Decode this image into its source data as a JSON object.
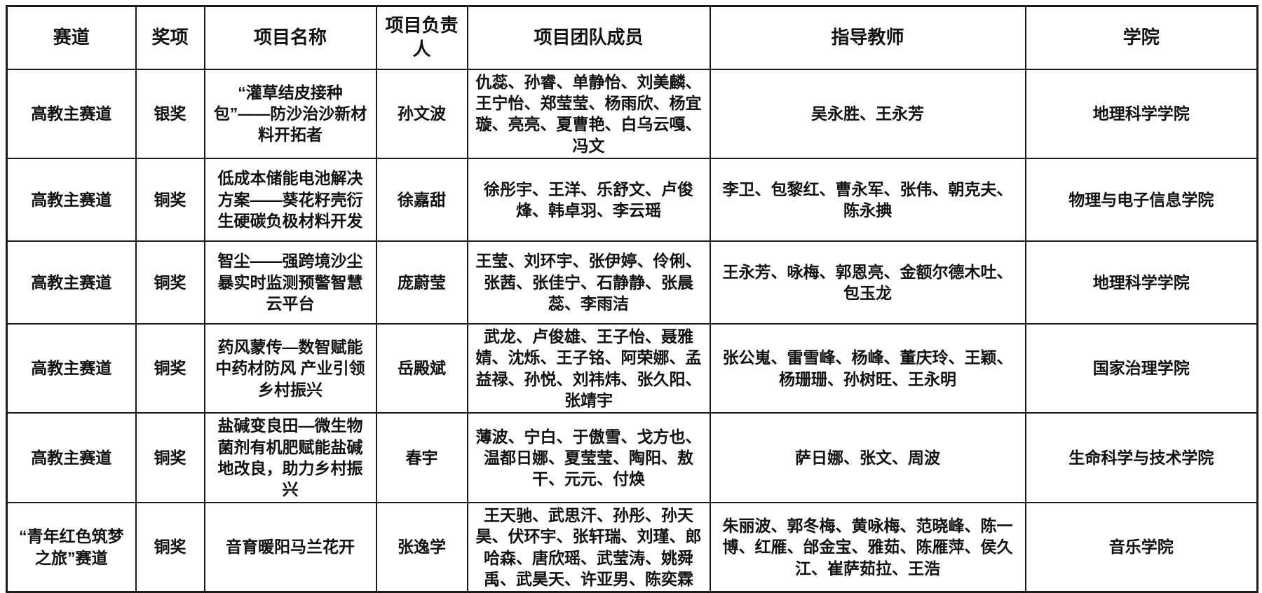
{
  "table": {
    "headers": [
      "赛道",
      "奖项",
      "项目名称",
      "项目负责人",
      "项目团队成员",
      "指导教师",
      "学院"
    ],
    "rows": [
      {
        "track": "高教主赛道",
        "award": "银奖",
        "project": "“灌草结皮接种包”——防沙治沙新材料开拓者",
        "leader": "孙文波",
        "members": "仇蕊、孙睿、单静怡、刘美麟、王宁怡、郑莹莹、杨雨欣、杨宜璇、亮亮、夏曹艳、白乌云嘎、冯文",
        "teachers": "吴永胜、王永芳",
        "college": "地理科学学院"
      },
      {
        "track": "高教主赛道",
        "award": "铜奖",
        "project": "低成本储能电池解决方案——葵花籽壳衍生硬碳负极材料开发",
        "leader": "徐嘉甜",
        "members": "徐彤宇、王洋、乐舒文、卢俊烽、韩卓羽、李云瑶",
        "teachers": "李卫、包黎红、曹永军、张伟、朝克夫、陈永捵",
        "college": "物理与电子信息学院"
      },
      {
        "track": "高教主赛道",
        "award": "铜奖",
        "project": "智尘——强跨境沙尘暴实时监测预警智慧云平台",
        "leader": "庞蔚莹",
        "members": "王莹、刘环宇、张伊婷、伶俐、张茜、张佳宁、石静静、张晨蕊、李雨洁",
        "teachers": "王永芳、咏梅、郭恩亮、金额尔德木吐、包玉龙",
        "college": "地理科学学院"
      },
      {
        "track": "高教主赛道",
        "award": "铜奖",
        "project": "药风蒙传—数智赋能中药材防风 产业引领乡村振兴",
        "leader": "岳殿斌",
        "members": "武龙、卢俊雄、王子怡、聂雅婧、沈烁、王子铭、阿荣娜、孟益禄、孙悦、刘祎炜、张久阳、张靖宇",
        "teachers": "张公嵬、雷雪峰、杨峰、董庆玲、王颖、杨珊珊、孙树旺、王永明",
        "college": "国家治理学院"
      },
      {
        "track": "高教主赛道",
        "award": "铜奖",
        "project": "盐碱变良田—微生物菌剂有机肥赋能盐碱地改良，助力乡村振兴",
        "leader": "春宇",
        "members": "薄波、宁白、于傲雪、戈方也、温都日娜、夏莹莹、陶阳、敖干、元元、付焕",
        "teachers": "萨日娜、张文、周波",
        "college": "生命科学与技术学院"
      },
      {
        "track": "“青年红色筑梦之旅”赛道",
        "award": "铜奖",
        "project": "音育暖阳马兰花开",
        "leader": "张逸学",
        "members": "王天驰、武思汗、孙彤、孙天昊、伏环宇、张轩瑞、刘瑾、郎哈森、唐欣瑶、武莹涛、姚舜禹、武昊天、许亚男、陈奕霖",
        "teachers": "朱丽波、郭冬梅、黄咏梅、范晓峰、陈一博、红雁、邰金宝、雅茹、陈雁萍、侯久江、崔萨茹拉、王浩",
        "college": "音乐学院"
      }
    ]
  }
}
